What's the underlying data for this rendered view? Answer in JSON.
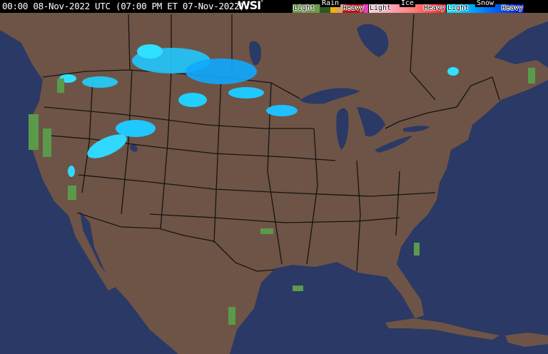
{
  "header": {
    "timestamp": "00:00 08-Nov-2022 UTC  (07:00 PM ET 07-Nov-2022)",
    "logo": "WSI",
    "logo_mark": "°"
  },
  "legend": {
    "groups": [
      {
        "title": "Rain",
        "light": "Light",
        "heavy": "Heavy",
        "colors": [
          "#6a9a4a",
          "#3f7a2e",
          "#2a5a1e",
          "#f0b010",
          "#e07010",
          "#c01010",
          "#e040c0"
        ]
      },
      {
        "title": "Ice",
        "light": "Light",
        "heavy": "Heavy",
        "colors": [
          "#ffd0e0",
          "#ffa0b0",
          "#ff8080",
          "#ff5050",
          "#e02020"
        ]
      },
      {
        "title": "Snow",
        "light": "Light",
        "heavy": "Heavy",
        "colors": [
          "#00f0ff",
          "#00b0ff",
          "#0070ff",
          "#0040e0",
          "#0010c0"
        ]
      }
    ]
  },
  "map": {
    "land_color": "#6e5446",
    "water_color": "#2a3966",
    "border_color": "#141414"
  }
}
